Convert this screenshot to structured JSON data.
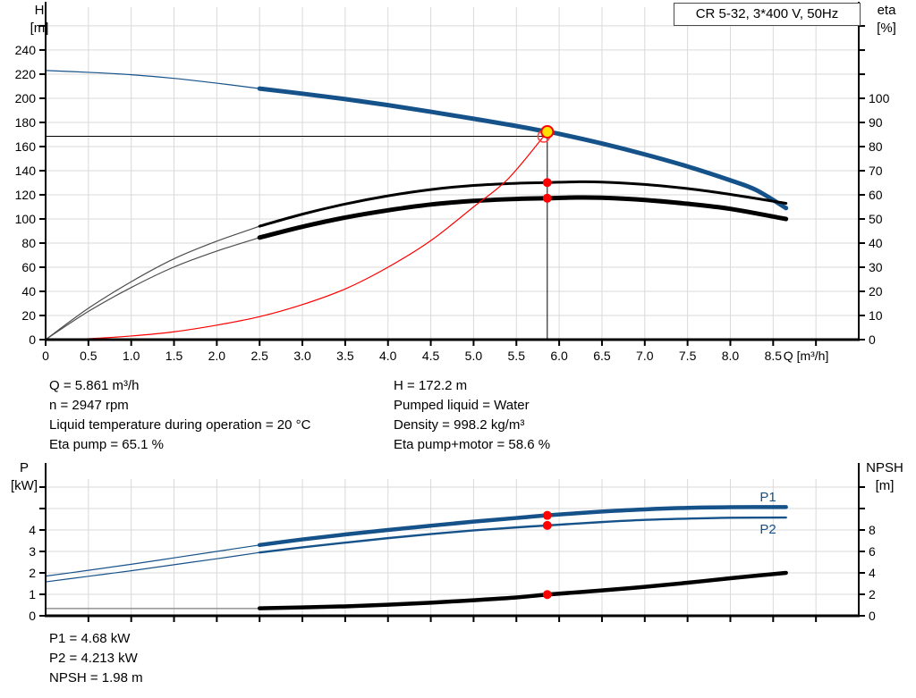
{
  "title": "CR 5-32, 3*400 V, 50Hz",
  "colors": {
    "curve_blue": "#16528a",
    "curve_black": "#000000",
    "thin_gray": "#4d4d4d",
    "npsh_lowflow_gray": "#909090",
    "system_red": "#ff0000",
    "dot_red": "#ff0000",
    "duty_yellow": "#ffe000",
    "ring_red": "#ff4040",
    "grid": "#d9d9d9",
    "axis": "#000000"
  },
  "info_top": {
    "left": [
      "Q = 5.861 m³/h",
      "n = 2947 rpm",
      "Liquid temperature during operation = 20 °C",
      "Eta pump = 65.1 %"
    ],
    "right": [
      "H = 172.2 m",
      "Pumped liquid = Water",
      "Density = 998.2 kg/m³",
      "Eta pump+motor = 58.6 %"
    ]
  },
  "info_bottom": [
    "P1 = 4.68 kW",
    "P2 = 4.213 kW",
    "NPSH = 1.98 m"
  ],
  "duty_point": {
    "q_m3h": 5.861,
    "h_m": 172.2,
    "n_rpm": 2947,
    "eta_pump_pct": 65.1,
    "eta_pump_motor_pct": 58.6,
    "p1_kw": 4.68,
    "p2_kw": 4.213,
    "npsh_m": 1.98,
    "liquid": "Water",
    "density_kg_m3": 998.2,
    "temperature_c": 20
  },
  "chart_data": [
    {
      "type": "line",
      "name": "qh-eta-chart",
      "title": "CR 5-32, 3*400 V, 50Hz",
      "x_axis": {
        "label": "Q [m³/h]",
        "range": [
          0,
          9.5
        ],
        "ticks": [
          {
            "v": 0,
            "l": "0"
          },
          {
            "v": 0.5,
            "l": "0.5"
          },
          {
            "v": 1,
            "l": "1.0"
          },
          {
            "v": 1.5,
            "l": "1.5"
          },
          {
            "v": 2,
            "l": "2.0"
          },
          {
            "v": 2.5,
            "l": "2.5"
          },
          {
            "v": 3,
            "l": "3.0"
          },
          {
            "v": 3.5,
            "l": "3.5"
          },
          {
            "v": 4,
            "l": "4.0"
          },
          {
            "v": 4.5,
            "l": "4.5"
          },
          {
            "v": 5,
            "l": "5.0"
          },
          {
            "v": 5.5,
            "l": "5.5"
          },
          {
            "v": 6,
            "l": "6.0"
          },
          {
            "v": 6.5,
            "l": "6.5"
          },
          {
            "v": 7,
            "l": "7.0"
          },
          {
            "v": 7.5,
            "l": "7.5"
          },
          {
            "v": 8,
            "l": "8.0"
          },
          {
            "v": 8.5,
            "l": "8.5"
          },
          {
            "v": 9,
            "l": ""
          }
        ]
      },
      "left_axis": {
        "label": "H",
        "unit": "[m]",
        "range": [
          0,
          275.5
        ],
        "grid_values": [
          20,
          40,
          60,
          80,
          100,
          120,
          140,
          160,
          180,
          200,
          220,
          240,
          260
        ],
        "ticks": [
          {
            "v": 0,
            "l": "0"
          },
          {
            "v": 20,
            "l": "20"
          },
          {
            "v": 40,
            "l": "40"
          },
          {
            "v": 60,
            "l": "60"
          },
          {
            "v": 80,
            "l": "80"
          },
          {
            "v": 100,
            "l": "100"
          },
          {
            "v": 120,
            "l": "120"
          },
          {
            "v": 140,
            "l": "140"
          },
          {
            "v": 160,
            "l": "160"
          },
          {
            "v": 180,
            "l": "180"
          },
          {
            "v": 200,
            "l": "200"
          },
          {
            "v": 220,
            "l": "220"
          },
          {
            "v": 240,
            "l": "240"
          },
          {
            "v": 260,
            "l": ""
          }
        ]
      },
      "right_axis": {
        "label": "eta",
        "unit": "[%]",
        "range": [
          0,
          137.8
        ],
        "ticks": [
          {
            "v": 0,
            "l": "0"
          },
          {
            "v": 10,
            "l": "10"
          },
          {
            "v": 20,
            "l": "20"
          },
          {
            "v": 30,
            "l": "30"
          },
          {
            "v": 40,
            "l": "40"
          },
          {
            "v": 50,
            "l": "50"
          },
          {
            "v": 60,
            "l": "60"
          },
          {
            "v": 70,
            "l": "70"
          },
          {
            "v": 80,
            "l": "80"
          },
          {
            "v": 90,
            "l": "90"
          },
          {
            "v": 100,
            "l": "100"
          },
          {
            "v": 110,
            "l": ""
          },
          {
            "v": 120,
            "l": ""
          },
          {
            "v": 130,
            "l": ""
          }
        ]
      },
      "series": [
        {
          "name": "head-curve-low-flow",
          "axis": "left",
          "color": "curve_blue",
          "width": 1.2,
          "points": [
            [
              0,
              223
            ],
            [
              0.5,
              221.5
            ],
            [
              1,
              219.5
            ],
            [
              1.5,
              216.5
            ],
            [
              2,
              212.5
            ],
            [
              2.5,
              208
            ]
          ]
        },
        {
          "name": "head-curve",
          "axis": "left",
          "color": "curve_blue",
          "width": 5,
          "points": [
            [
              2.5,
              208
            ],
            [
              3,
              203.8
            ],
            [
              3.5,
              199.3
            ],
            [
              4,
              194.3
            ],
            [
              4.5,
              188.8
            ],
            [
              5,
              183
            ],
            [
              5.5,
              177
            ],
            [
              5.861,
              172.2
            ],
            [
              6,
              170.5
            ],
            [
              6.5,
              162.5
            ],
            [
              7,
              153.5
            ],
            [
              7.5,
              143.5
            ],
            [
              8,
              132
            ],
            [
              8.3,
              124
            ],
            [
              8.65,
              109
            ]
          ]
        },
        {
          "name": "eta-pump-curve-low-flow",
          "axis": "right",
          "color": "thin_gray",
          "width": 1.2,
          "points": [
            [
              0,
              0
            ],
            [
              0.5,
              13
            ],
            [
              1,
              24
            ],
            [
              1.5,
              33.5
            ],
            [
              2,
              40.8
            ],
            [
              2.5,
              47
            ]
          ]
        },
        {
          "name": "eta-pump-curve",
          "axis": "right",
          "color": "curve_black",
          "width": 3,
          "points": [
            [
              2.5,
              47
            ],
            [
              3,
              52
            ],
            [
              3.5,
              56.2
            ],
            [
              4,
              59.6
            ],
            [
              4.5,
              62.2
            ],
            [
              5,
              63.9
            ],
            [
              5.5,
              64.8
            ],
            [
              5.861,
              65.1
            ],
            [
              6.2,
              65.4
            ],
            [
              6.5,
              65.3
            ],
            [
              7,
              64.3
            ],
            [
              7.5,
              62.6
            ],
            [
              8,
              60.2
            ],
            [
              8.65,
              56.5
            ]
          ]
        },
        {
          "name": "eta-pump-motor-curve-low-flow",
          "axis": "right",
          "color": "thin_gray",
          "width": 1.2,
          "points": [
            [
              0,
              0
            ],
            [
              0.5,
              11.7
            ],
            [
              1,
              21.6
            ],
            [
              1.5,
              30.1
            ],
            [
              2,
              36.7
            ],
            [
              2.5,
              42.3
            ]
          ]
        },
        {
          "name": "eta-pump-motor-curve",
          "axis": "right",
          "color": "curve_black",
          "width": 5,
          "points": [
            [
              2.5,
              42.3
            ],
            [
              3,
              46.8
            ],
            [
              3.5,
              50.6
            ],
            [
              4,
              53.6
            ],
            [
              4.5,
              56
            ],
            [
              5,
              57.5
            ],
            [
              5.5,
              58.3
            ],
            [
              5.861,
              58.6
            ],
            [
              6.2,
              58.9
            ],
            [
              6.5,
              58.8
            ],
            [
              7,
              57.9
            ],
            [
              7.5,
              56.3
            ],
            [
              8,
              54.2
            ],
            [
              8.65,
              50
            ]
          ]
        },
        {
          "name": "system-curve",
          "axis": "left",
          "color": "system_red",
          "width": 1.2,
          "points": [
            [
              0,
              0
            ],
            [
              0.5,
              0.8
            ],
            [
              1,
              3
            ],
            [
              1.5,
              6.5
            ],
            [
              2,
              12
            ],
            [
              2.5,
              19
            ],
            [
              3,
              29
            ],
            [
              3.5,
              42
            ],
            [
              4,
              60
            ],
            [
              4.5,
              82
            ],
            [
              5,
              110
            ],
            [
              5.4,
              133
            ],
            [
              5.82,
              168.5
            ]
          ]
        }
      ],
      "duty_lines": [
        {
          "name": "duty-head-line",
          "axis": "left",
          "from": [
            0,
            168.5
          ],
          "to": [
            5.82,
            168.5
          ]
        },
        {
          "name": "duty-flow-line",
          "axis": "left",
          "from": [
            5.861,
            0
          ],
          "to": [
            5.861,
            172.2
          ]
        }
      ],
      "markers": [
        {
          "name": "requested-duty-circle",
          "type": "ring",
          "axis": "left",
          "q": 5.82,
          "v": 168.5,
          "color": "ring_red",
          "r": 6.5
        },
        {
          "name": "duty-point",
          "type": "dot",
          "axis": "left",
          "q": 5.861,
          "v": 172.2,
          "color": "duty_yellow",
          "stroke": "dot_red",
          "r": 6.5
        },
        {
          "name": "eta-pump-dot",
          "type": "dot",
          "axis": "right",
          "q": 5.861,
          "v": 65.1,
          "color": "dot_red",
          "r": 5
        },
        {
          "name": "eta-pump-motor-dot",
          "type": "dot",
          "axis": "right",
          "q": 5.861,
          "v": 58.6,
          "color": "dot_red",
          "r": 5
        }
      ],
      "annotations": []
    },
    {
      "type": "line",
      "name": "power-npsh-chart",
      "x_axis": {
        "label": "",
        "range": [
          0,
          9.5
        ],
        "tick_step": 0.5,
        "max_tick": 9
      },
      "left_axis": {
        "label": "P",
        "unit": "[kW]",
        "range": [
          0,
          6.375
        ],
        "grid_values": [
          1,
          2,
          3,
          4,
          5,
          6
        ],
        "ticks": [
          {
            "v": 0,
            "l": "0"
          },
          {
            "v": 1,
            "l": "1"
          },
          {
            "v": 2,
            "l": "2"
          },
          {
            "v": 3,
            "l": "3"
          },
          {
            "v": 4,
            "l": "4"
          },
          {
            "v": 5,
            "l": ""
          },
          {
            "v": 6,
            "l": ""
          }
        ]
      },
      "right_axis": {
        "label": "NPSH",
        "unit": "[m]",
        "range": [
          0,
          12.75
        ],
        "ticks": [
          {
            "v": 0,
            "l": "0"
          },
          {
            "v": 2,
            "l": "2"
          },
          {
            "v": 4,
            "l": "4"
          },
          {
            "v": 6,
            "l": "6"
          },
          {
            "v": 8,
            "l": "8"
          },
          {
            "v": 10,
            "l": ""
          },
          {
            "v": 12,
            "l": ""
          }
        ]
      },
      "series": [
        {
          "name": "p1-curve-low-flow",
          "axis": "left",
          "color": "curve_blue",
          "width": 1.2,
          "points": [
            [
              0,
              1.85
            ],
            [
              0.5,
              2.12
            ],
            [
              1,
              2.4
            ],
            [
              1.5,
              2.7
            ],
            [
              2,
              3
            ],
            [
              2.5,
              3.3
            ]
          ]
        },
        {
          "name": "p1-curve",
          "axis": "left",
          "color": "curve_blue",
          "width": 4.5,
          "points": [
            [
              2.5,
              3.3
            ],
            [
              3,
              3.56
            ],
            [
              3.5,
              3.79
            ],
            [
              4,
              4
            ],
            [
              4.5,
              4.2
            ],
            [
              5,
              4.39
            ],
            [
              5.5,
              4.56
            ],
            [
              5.861,
              4.68
            ],
            [
              6.5,
              4.86
            ],
            [
              7,
              4.96
            ],
            [
              7.5,
              5.03
            ],
            [
              8,
              5.06
            ],
            [
              8.65,
              5.07
            ]
          ]
        },
        {
          "name": "p2-curve-low-flow",
          "axis": "left",
          "color": "curve_blue",
          "width": 1.2,
          "points": [
            [
              0,
              1.58
            ],
            [
              0.5,
              1.84
            ],
            [
              1,
              2.1
            ],
            [
              1.5,
              2.38
            ],
            [
              2,
              2.66
            ],
            [
              2.5,
              2.95
            ]
          ]
        },
        {
          "name": "p2-curve",
          "axis": "left",
          "color": "curve_blue",
          "width": 2.4,
          "points": [
            [
              2.5,
              2.95
            ],
            [
              3,
              3.19
            ],
            [
              3.5,
              3.41
            ],
            [
              4,
              3.62
            ],
            [
              4.5,
              3.81
            ],
            [
              5,
              3.98
            ],
            [
              5.5,
              4.12
            ],
            [
              5.861,
              4.213
            ],
            [
              6.5,
              4.37
            ],
            [
              7,
              4.47
            ],
            [
              7.5,
              4.53
            ],
            [
              8,
              4.57
            ],
            [
              8.65,
              4.58
            ]
          ]
        },
        {
          "name": "npsh-curve-low-flow",
          "axis": "right",
          "color": "npsh_lowflow_gray",
          "width": 1.5,
          "points": [
            [
              0,
              0.68
            ],
            [
              1.25,
              0.68
            ],
            [
              2.5,
              0.68
            ]
          ]
        },
        {
          "name": "npsh-curve",
          "axis": "right",
          "color": "curve_black",
          "width": 4.5,
          "points": [
            [
              2.5,
              0.7
            ],
            [
              3,
              0.78
            ],
            [
              3.5,
              0.88
            ],
            [
              4,
              1.03
            ],
            [
              4.5,
              1.22
            ],
            [
              5,
              1.45
            ],
            [
              5.5,
              1.71
            ],
            [
              5.861,
              1.98
            ],
            [
              6.5,
              2.36
            ],
            [
              7,
              2.7
            ],
            [
              7.5,
              3.08
            ],
            [
              8,
              3.5
            ],
            [
              8.65,
              4
            ]
          ]
        }
      ],
      "duty_lines": [],
      "markers": [
        {
          "name": "p1-dot",
          "type": "dot",
          "axis": "left",
          "q": 5.861,
          "v": 4.68,
          "color": "dot_red",
          "r": 5
        },
        {
          "name": "p2-dot",
          "type": "dot",
          "axis": "left",
          "q": 5.861,
          "v": 4.213,
          "color": "dot_red",
          "r": 5
        },
        {
          "name": "npsh-dot",
          "type": "dot",
          "axis": "right",
          "q": 5.861,
          "v": 1.98,
          "color": "dot_red",
          "r": 5
        }
      ],
      "annotations": [
        {
          "name": "p1-curve-label",
          "text": "P1",
          "q": 8.44,
          "v": 5.55,
          "color": "curve_blue"
        },
        {
          "name": "p2-curve-label",
          "text": "P2",
          "q": 8.44,
          "v": 4.05,
          "color": "curve_blue"
        }
      ]
    }
  ]
}
